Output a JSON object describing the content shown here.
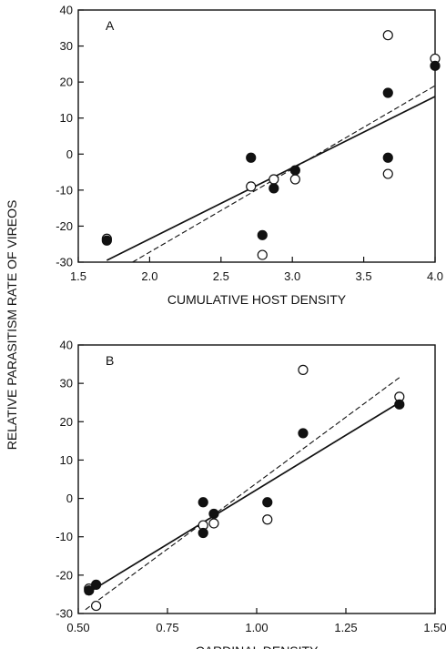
{
  "figure": {
    "ylabel": "RELATIVE PARASITISM RATE OF VIREOS"
  },
  "chart_data": [
    {
      "type": "scatter",
      "panel": "A",
      "xlabel": "CUMULATIVE HOST DENSITY",
      "xlim": [
        1.5,
        4.0
      ],
      "ylim": [
        -30,
        40
      ],
      "xticks": [
        "1.5",
        "2.0",
        "2.5",
        "3.0",
        "3.5",
        "4.0"
      ],
      "yticks": [
        "-30",
        "-20",
        "-10",
        "0",
        "10",
        "20",
        "30",
        "40"
      ],
      "grid": false,
      "series": [
        {
          "marker": "filled-circle",
          "points": [
            [
              1.7,
              -24
            ],
            [
              2.71,
              -1
            ],
            [
              2.79,
              -22.5
            ],
            [
              2.87,
              -9.5
            ],
            [
              3.02,
              -4.5
            ],
            [
              3.67,
              17
            ],
            [
              3.67,
              -1
            ],
            [
              4.0,
              24.5
            ]
          ]
        },
        {
          "marker": "open-circle",
          "points": [
            [
              1.7,
              -23.5
            ],
            [
              2.71,
              -9
            ],
            [
              2.79,
              -28
            ],
            [
              2.87,
              -7
            ],
            [
              3.02,
              -7
            ],
            [
              3.67,
              33
            ],
            [
              3.67,
              -5.5
            ],
            [
              4.0,
              26.5
            ]
          ]
        }
      ],
      "fits": [
        {
          "style": "solid",
          "from": [
            1.7,
            -29.5
          ],
          "to": [
            4.0,
            16
          ]
        },
        {
          "style": "dashed",
          "from": [
            1.88,
            -30
          ],
          "to": [
            4.0,
            19
          ]
        }
      ]
    },
    {
      "type": "scatter",
      "panel": "B",
      "xlabel": "CARDINAL DENSITY",
      "xlim": [
        0.5,
        1.5
      ],
      "ylim": [
        -30,
        40
      ],
      "xticks": [
        "0.50",
        "0.75",
        "1.00",
        "1.25",
        "1.50"
      ],
      "yticks": [
        "-30",
        "-20",
        "-10",
        "0",
        "10",
        "20",
        "30",
        "40"
      ],
      "grid": false,
      "series": [
        {
          "marker": "filled-circle",
          "points": [
            [
              0.53,
              -24
            ],
            [
              0.55,
              -22.5
            ],
            [
              0.85,
              -1
            ],
            [
              0.85,
              -9
            ],
            [
              0.88,
              -4
            ],
            [
              1.03,
              -1
            ],
            [
              1.13,
              17
            ],
            [
              1.4,
              24.5
            ]
          ]
        },
        {
          "marker": "open-circle",
          "points": [
            [
              0.53,
              -23.5
            ],
            [
              0.55,
              -28
            ],
            [
              0.85,
              -7
            ],
            [
              0.88,
              -6.5
            ],
            [
              1.03,
              -5.5
            ],
            [
              1.13,
              33.5
            ],
            [
              1.4,
              26.5
            ]
          ]
        }
      ],
      "fits": [
        {
          "style": "solid",
          "from": [
            0.52,
            -25
          ],
          "to": [
            1.4,
            25
          ]
        },
        {
          "style": "dashed",
          "from": [
            0.52,
            -29
          ],
          "to": [
            1.4,
            31.5
          ]
        }
      ]
    }
  ]
}
